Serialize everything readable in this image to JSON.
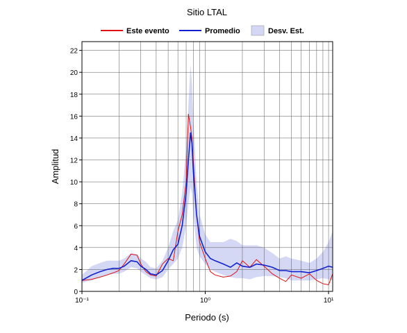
{
  "chart_data": {
    "type": "line",
    "title": "Sitio LTAL",
    "x_label": "Periodo (s)",
    "y_label": "Amplitud",
    "log_x": true,
    "grid": true,
    "legend_position": "top",
    "xlim": [
      0.1,
      10.8
    ],
    "ylim": [
      0,
      22.8
    ],
    "xticks": [
      {
        "value": 0.1,
        "label": "10⁻¹"
      },
      {
        "value": 1,
        "label": "10⁰"
      },
      {
        "value": 10,
        "label": "10¹"
      }
    ],
    "yticks": [
      0,
      2,
      4,
      6,
      8,
      10,
      12,
      14,
      16,
      18,
      20,
      22
    ],
    "x": [
      0.1,
      0.12,
      0.14,
      0.16,
      0.18,
      0.2,
      0.22,
      0.25,
      0.28,
      0.3,
      0.33,
      0.36,
      0.4,
      0.45,
      0.5,
      0.55,
      0.6,
      0.65,
      0.7,
      0.73,
      0.76,
      0.78,
      0.8,
      0.85,
      0.9,
      1.0,
      1.1,
      1.2,
      1.4,
      1.6,
      1.8,
      2,
      2.3,
      2.6,
      3,
      3.5,
      4,
      4.5,
      5,
      6,
      7,
      8,
      9,
      10,
      10.8
    ],
    "band": {
      "name": "Desv. Est.",
      "color": "#d4d8f5",
      "upper": [
        1.5,
        2.3,
        2.6,
        2.8,
        2.8,
        2.8,
        3.0,
        3.5,
        3.4,
        3.0,
        2.7,
        2.2,
        2.1,
        2.8,
        4.0,
        5.5,
        6.5,
        9,
        13,
        17,
        20.7,
        19,
        16,
        10,
        7,
        5.2,
        4.5,
        4.5,
        4.5,
        4.8,
        4.6,
        4.2,
        4.2,
        4.2,
        4.0,
        3.5,
        3.0,
        3.2,
        3.0,
        2.8,
        2.6,
        3.0,
        3.6,
        4.5,
        5.5
      ],
      "lower": [
        0.8,
        1.0,
        1.3,
        1.5,
        1.6,
        1.6,
        1.8,
        2.2,
        2.1,
        1.8,
        1.5,
        1.2,
        1.1,
        1.3,
        2.0,
        2.5,
        3.0,
        4,
        6,
        8,
        9.5,
        9,
        7,
        4,
        3.2,
        2.5,
        2.0,
        1.8,
        1.5,
        1.3,
        1.2,
        1.2,
        1.1,
        1.3,
        1.4,
        1.4,
        1.3,
        1.2,
        1.0,
        1.0,
        1.0,
        1.1,
        1.2,
        1.1,
        1.0
      ]
    },
    "series": [
      {
        "name": "Este evento",
        "color": "#e01010",
        "values": [
          1.0,
          1.1,
          1.3,
          1.5,
          1.7,
          1.9,
          2.5,
          3.4,
          3.3,
          2.5,
          1.8,
          1.5,
          1.4,
          2.5,
          3.0,
          2.8,
          5.5,
          7,
          10,
          16.2,
          15,
          14,
          12,
          7,
          4.5,
          3.0,
          1.8,
          1.5,
          1.3,
          1.4,
          1.8,
          2.8,
          2.2,
          2.9,
          2.3,
          1.6,
          1.2,
          0.9,
          1.5,
          1.2,
          1.6,
          1.0,
          0.7,
          0.6,
          1.6
        ]
      },
      {
        "name": "Promedio",
        "color": "#1020d0",
        "values": [
          1.0,
          1.5,
          1.8,
          2.0,
          2.1,
          2.1,
          2.3,
          2.8,
          2.7,
          2.3,
          2.0,
          1.6,
          1.5,
          1.9,
          2.8,
          3.8,
          4.3,
          6,
          9,
          12,
          14.5,
          13.5,
          11,
          7,
          5,
          3.6,
          3.0,
          2.8,
          2.5,
          2.2,
          2.6,
          2.3,
          2.2,
          2.5,
          2.4,
          2.2,
          1.9,
          1.9,
          1.8,
          1.8,
          1.7,
          1.9,
          2.1,
          2.3,
          2.2
        ]
      }
    ]
  }
}
